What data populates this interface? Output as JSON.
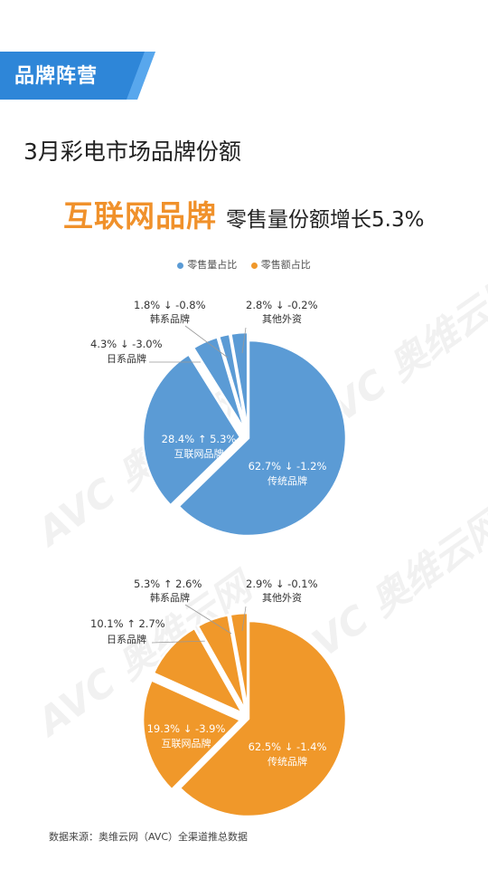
{
  "banner": {
    "label": "品牌阵营"
  },
  "page_title": "3月彩电市场品牌份额",
  "headline": {
    "main": "互联网品牌",
    "sub": "零售量份额增长5.3%"
  },
  "source": "数据来源：奥维云网（AVC）全渠道推总数据",
  "watermark": "AVC 奥维云网",
  "colors": {
    "volume": "#5b9bd5",
    "value": "#f0982a",
    "banner": "#2e86d8",
    "headline": "#f0912b"
  },
  "chart_data": [
    {
      "type": "pie",
      "legend_label": "零售量占比",
      "color": "#5b9bd5",
      "slices": [
        {
          "name": "传统品牌",
          "value": 62.7,
          "change": "↓ -1.2%"
        },
        {
          "name": "互联网品牌",
          "value": 28.4,
          "change": "↑ 5.3%"
        },
        {
          "name": "日系品牌",
          "value": 4.3,
          "change": "↓ -3.0%"
        },
        {
          "name": "韩系品牌",
          "value": 1.8,
          "change": "↓ -0.8%"
        },
        {
          "name": "其他外资",
          "value": 2.8,
          "change": "↓ -0.2%"
        }
      ]
    },
    {
      "type": "pie",
      "legend_label": "零售额占比",
      "color": "#f0982a",
      "slices": [
        {
          "name": "传统品牌",
          "value": 62.5,
          "change": "↓ -1.4%"
        },
        {
          "name": "互联网品牌",
          "value": 19.3,
          "change": "↓ -3.9%"
        },
        {
          "name": "日系品牌",
          "value": 10.1,
          "change": "↑ 2.7%"
        },
        {
          "name": "韩系品牌",
          "value": 5.3,
          "change": "↑ 2.6%"
        },
        {
          "name": "其他外资",
          "value": 2.9,
          "change": "↓ -0.1%"
        }
      ]
    }
  ]
}
